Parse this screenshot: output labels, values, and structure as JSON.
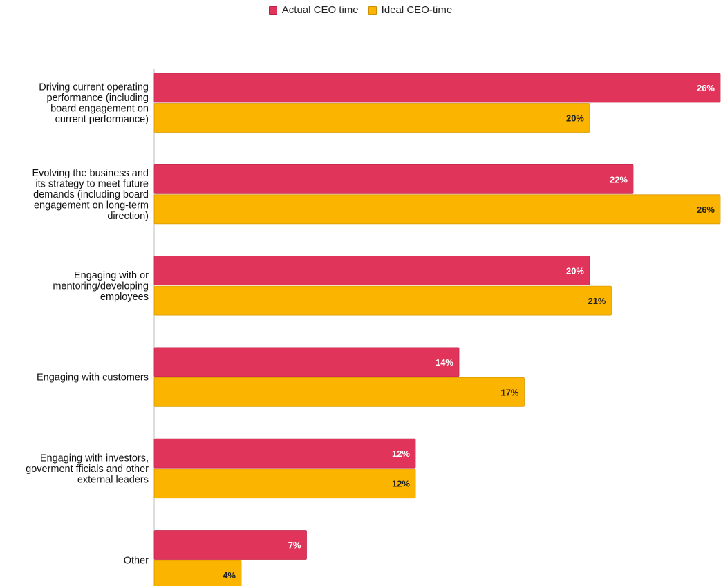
{
  "chart_data": {
    "type": "bar",
    "orientation": "horizontal",
    "categories": [
      "Driving current operating performance (including board engagement on current performance)",
      "Evolving the business and its strategy to meet future demands (including board engagement on long-term direction)",
      "Engaging with or mentoring/developing employees",
      "Engaging with customers",
      "Engaging with investors, goverment fficials and other external leaders",
      "Other"
    ],
    "category_lines": [
      [
        "Driving current operating",
        "performance (including",
        "board engagement on",
        "current performance)"
      ],
      [
        "Evolving the business and",
        "its strategy to meet future",
        "demands (including board",
        "engagement on long-term",
        "direction)"
      ],
      [
        "Engaging with or",
        "mentoring/developing",
        "employees"
      ],
      [
        "Engaging with customers"
      ],
      [
        "Engaging with investors,",
        "goverment fficials and other",
        "external leaders"
      ],
      [
        "Other"
      ]
    ],
    "series": [
      {
        "name": "Actual CEO time",
        "values": [
          26,
          22,
          20,
          14,
          12,
          7
        ],
        "color": "#e0345a",
        "label_color": "#ffffff"
      },
      {
        "name": "Ideal CEO-time",
        "values": [
          20,
          26,
          21,
          17,
          12,
          4
        ],
        "color": "#fbb400",
        "label_color": "#222222"
      }
    ],
    "value_suffix": "%",
    "xlim": [
      0,
      26
    ],
    "legend_position": "top-center",
    "grid": false
  }
}
